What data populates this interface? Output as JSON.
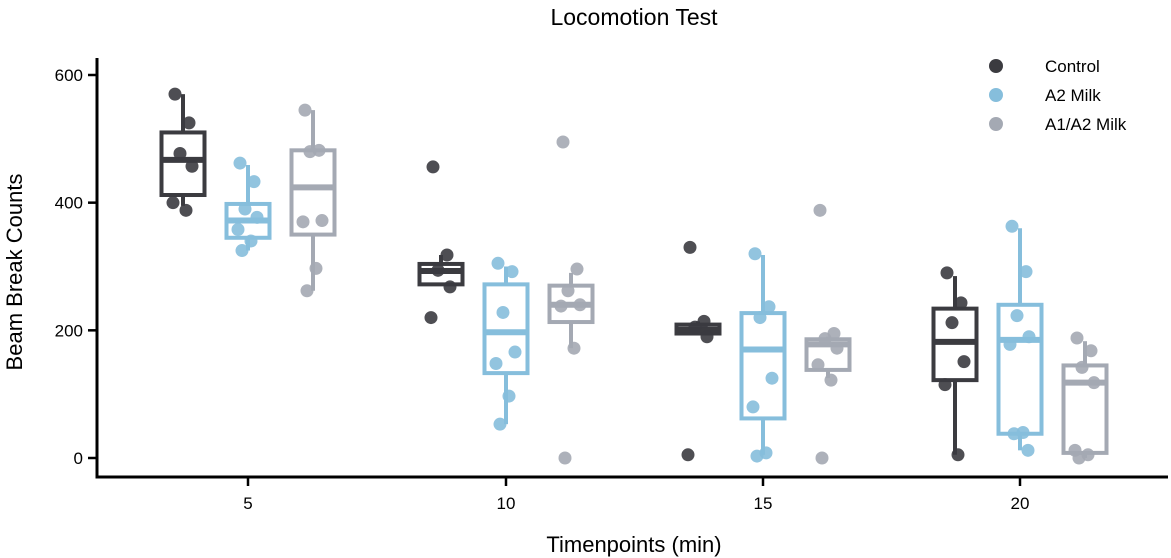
{
  "chart_data": {
    "type": "box",
    "title": "Locomotion Test",
    "xlabel": "Timenpoints (min)",
    "ylabel": "Beam Break Counts",
    "categories": [
      "5",
      "10",
      "15",
      "20"
    ],
    "ylim": [
      -30,
      630
    ],
    "yticks": [
      0,
      200,
      400,
      600
    ],
    "legend_position": "top-right",
    "grid": false,
    "series": [
      {
        "name": "Control",
        "color": "#3b3b40",
        "boxes": [
          {
            "whisker_low": 395,
            "q1": 412,
            "median": 467,
            "q3": 510,
            "whisker_high": 570,
            "points": [
              570,
              525,
              477,
              457,
              400,
              388
            ]
          },
          {
            "whisker_low": 272,
            "q1": 272,
            "median": 293,
            "q3": 304,
            "whisker_high": 318,
            "points": [
              456,
              318,
              294,
              268,
              220
            ]
          },
          {
            "whisker_low": 195,
            "q1": 195,
            "median": 201,
            "q3": 209,
            "whisker_high": 214,
            "points": [
              330,
              214,
              205,
              190,
              5
            ]
          },
          {
            "whisker_low": 5,
            "q1": 122,
            "median": 182,
            "q3": 234,
            "whisker_high": 285,
            "points": [
              290,
              243,
              212,
              151,
              115,
              5
            ]
          }
        ]
      },
      {
        "name": "A2 Milk",
        "color": "#86bedc",
        "boxes": [
          {
            "whisker_low": 325,
            "q1": 345,
            "median": 372,
            "q3": 398,
            "whisker_high": 459,
            "points": [
              462,
              433,
              390,
              377,
              358,
              340,
              325
            ]
          },
          {
            "whisker_low": 53,
            "q1": 133,
            "median": 197,
            "q3": 272,
            "whisker_high": 300,
            "points": [
              305,
              292,
              228,
              166,
              148,
              97,
              53
            ]
          },
          {
            "whisker_low": 5,
            "q1": 62,
            "median": 170,
            "q3": 227,
            "whisker_high": 318,
            "points": [
              320,
              237,
              220,
              125,
              80,
              8,
              3
            ]
          },
          {
            "whisker_low": 12,
            "q1": 38,
            "median": 185,
            "q3": 240,
            "whisker_high": 360,
            "points": [
              363,
              292,
              223,
              190,
              178,
              40,
              38,
              12
            ]
          }
        ]
      },
      {
        "name": "A1/A2 Milk",
        "color": "#a4a9b3",
        "boxes": [
          {
            "whisker_low": 262,
            "q1": 350,
            "median": 424,
            "q3": 482,
            "whisker_high": 545,
            "points": [
              545,
              482,
              480,
              372,
              370,
              297,
              262
            ]
          },
          {
            "whisker_low": 172,
            "q1": 213,
            "median": 240,
            "q3": 270,
            "whisker_high": 290,
            "points": [
              495,
              296,
              262,
              240,
              238,
              172,
              0
            ]
          },
          {
            "whisker_low": 125,
            "q1": 138,
            "median": 178,
            "q3": 186,
            "whisker_high": 190,
            "points": [
              388,
              195,
              187,
              172,
              146,
              122,
              0
            ]
          },
          {
            "whisker_low": 0,
            "q1": 8,
            "median": 118,
            "q3": 145,
            "whisker_high": 183,
            "points": [
              188,
              168,
              142,
              118,
              12,
              5,
              0
            ]
          }
        ]
      }
    ]
  }
}
